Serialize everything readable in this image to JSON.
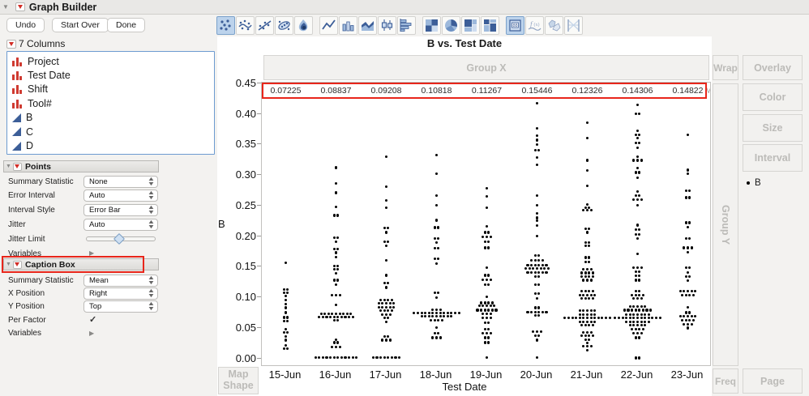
{
  "window": {
    "title": "Graph Builder",
    "buttons": [
      {
        "label": "Undo"
      },
      {
        "label": "Start Over"
      },
      {
        "label": "Done"
      }
    ]
  },
  "toolbar": {
    "groups": [
      [
        {
          "name": "points",
          "selected": true
        },
        {
          "name": "smoother",
          "selected": false
        },
        {
          "name": "line-of-fit",
          "selected": false
        },
        {
          "name": "ellipse",
          "selected": false
        },
        {
          "name": "contour",
          "selected": false
        }
      ],
      [
        {
          "name": "line",
          "selected": false
        },
        {
          "name": "bar",
          "selected": false
        },
        {
          "name": "area",
          "selected": false
        },
        {
          "name": "box-plot",
          "selected": false
        },
        {
          "name": "histogram",
          "selected": false
        }
      ],
      [
        {
          "name": "heatmap",
          "selected": false
        },
        {
          "name": "pie",
          "selected": false
        },
        {
          "name": "treemap",
          "selected": false
        },
        {
          "name": "mosaic",
          "selected": false
        }
      ],
      [
        {
          "name": "caption-box",
          "selected": true
        },
        {
          "name": "formula",
          "selected": false
        },
        {
          "name": "map-shapes",
          "selected": false
        },
        {
          "name": "parallel",
          "selected": false
        }
      ]
    ]
  },
  "columns_panel": {
    "header": "7 Columns",
    "items": [
      {
        "name": "Project",
        "type": "nominal"
      },
      {
        "name": "Test Date",
        "type": "nominal"
      },
      {
        "name": "Shift",
        "type": "nominal"
      },
      {
        "name": "Tool#",
        "type": "nominal"
      },
      {
        "name": "B",
        "type": "continuous"
      },
      {
        "name": "C",
        "type": "continuous"
      },
      {
        "name": "D",
        "type": "continuous"
      }
    ]
  },
  "points_panel": {
    "title": "Points",
    "rows": [
      {
        "label": "Summary Statistic",
        "control": "select",
        "value": "None"
      },
      {
        "label": "Error Interval",
        "control": "select",
        "value": "Auto"
      },
      {
        "label": "Interval Style",
        "control": "select",
        "value": "Error Bar"
      },
      {
        "label": "Jitter",
        "control": "select",
        "value": "Auto"
      },
      {
        "label": "Jitter Limit",
        "control": "slider"
      },
      {
        "label": "Variables",
        "control": "disclosure"
      }
    ]
  },
  "caption_panel": {
    "title": "Caption Box",
    "highlighted": true,
    "rows": [
      {
        "label": "Summary Statistic",
        "control": "select",
        "value": "Mean"
      },
      {
        "label": "X Position",
        "control": "select",
        "value": "Right"
      },
      {
        "label": "Y Position",
        "control": "select",
        "value": "Top"
      },
      {
        "label": "Per Factor",
        "control": "checkbox",
        "checked": true
      },
      {
        "label": "Variables",
        "control": "disclosure"
      }
    ]
  },
  "zones": {
    "group_x": "Group X",
    "group_y": "Group Y",
    "wrap": "Wrap",
    "overlay": "Overlay",
    "color": "Color",
    "size": "Size",
    "interval": "Interval",
    "freq": "Freq",
    "page": "Page",
    "map_shape": "Map Shape"
  },
  "legend": {
    "symbol": "dot",
    "label": "B"
  },
  "chart_data": {
    "type": "scatter",
    "title": "B vs. Test Date",
    "xlabel": "Test Date",
    "ylabel": "B",
    "ylim": [
      0,
      0.45
    ],
    "ytick_step": 0.05,
    "grid": false,
    "legend_position": "right",
    "categories": [
      "15-Jun",
      "16-Jun",
      "17-Jun",
      "18-Jun",
      "19-Jun",
      "20-Jun",
      "21-Jun",
      "22-Jun",
      "23-Jun"
    ],
    "caption_box": {
      "statistic": "Mean",
      "values": [
        "0.07225",
        "0.08837",
        "0.09208",
        "0.10818",
        "0.11267",
        "0.15446",
        "0.12326",
        "0.14306",
        "0.14822"
      ],
      "highlighted": true
    },
    "point_bins_note": "per category: [B value, count of jittered points at that level]",
    "point_bins": [
      [
        [
          0.157,
          1
        ],
        [
          0.113,
          2
        ],
        [
          0.108,
          2
        ],
        [
          0.102,
          1
        ],
        [
          0.096,
          1
        ],
        [
          0.089,
          1
        ],
        [
          0.083,
          1
        ],
        [
          0.075,
          1
        ],
        [
          0.067,
          2
        ],
        [
          0.061,
          2
        ],
        [
          0.048,
          1
        ],
        [
          0.043,
          2
        ],
        [
          0.036,
          1
        ],
        [
          0.03,
          1
        ],
        [
          0.021,
          1
        ],
        [
          0.016,
          2
        ]
      ],
      [
        [
          0.312,
          1
        ],
        [
          0.286,
          1
        ],
        [
          0.271,
          1
        ],
        [
          0.248,
          1
        ],
        [
          0.234,
          2
        ],
        [
          0.197,
          2
        ],
        [
          0.191,
          1
        ],
        [
          0.179,
          2
        ],
        [
          0.173,
          1
        ],
        [
          0.166,
          1
        ],
        [
          0.151,
          2
        ],
        [
          0.146,
          2
        ],
        [
          0.139,
          1
        ],
        [
          0.128,
          2
        ],
        [
          0.121,
          1
        ],
        [
          0.103,
          3
        ],
        [
          0.088,
          1
        ],
        [
          0.073,
          9
        ],
        [
          0.068,
          10
        ],
        [
          0.062,
          2
        ],
        [
          0.031,
          1
        ],
        [
          0.026,
          2
        ],
        [
          0.019,
          3
        ],
        [
          0.002,
          12
        ]
      ],
      [
        [
          0.33,
          1
        ],
        [
          0.281,
          1
        ],
        [
          0.258,
          1
        ],
        [
          0.247,
          1
        ],
        [
          0.213,
          2
        ],
        [
          0.206,
          1
        ],
        [
          0.191,
          2
        ],
        [
          0.184,
          1
        ],
        [
          0.16,
          1
        ],
        [
          0.136,
          1
        ],
        [
          0.123,
          2
        ],
        [
          0.116,
          1
        ],
        [
          0.096,
          4
        ],
        [
          0.09,
          5
        ],
        [
          0.084,
          5
        ],
        [
          0.078,
          4
        ],
        [
          0.072,
          3
        ],
        [
          0.066,
          2
        ],
        [
          0.06,
          1
        ],
        [
          0.036,
          2
        ],
        [
          0.03,
          3
        ],
        [
          0.002,
          8
        ]
      ],
      [
        [
          0.333,
          1
        ],
        [
          0.302,
          1
        ],
        [
          0.266,
          1
        ],
        [
          0.25,
          1
        ],
        [
          0.226,
          1
        ],
        [
          0.214,
          2
        ],
        [
          0.196,
          2
        ],
        [
          0.19,
          1
        ],
        [
          0.18,
          2
        ],
        [
          0.163,
          2
        ],
        [
          0.155,
          1
        ],
        [
          0.108,
          2
        ],
        [
          0.1,
          1
        ],
        [
          0.08,
          3
        ],
        [
          0.074,
          13
        ],
        [
          0.069,
          9
        ],
        [
          0.063,
          4
        ],
        [
          0.051,
          1
        ],
        [
          0.041,
          2
        ],
        [
          0.034,
          3
        ]
      ],
      [
        [
          0.278,
          1
        ],
        [
          0.265,
          1
        ],
        [
          0.247,
          1
        ],
        [
          0.216,
          1
        ],
        [
          0.206,
          2
        ],
        [
          0.199,
          3
        ],
        [
          0.191,
          2
        ],
        [
          0.181,
          2
        ],
        [
          0.148,
          1
        ],
        [
          0.136,
          2
        ],
        [
          0.129,
          3
        ],
        [
          0.121,
          2
        ],
        [
          0.101,
          1
        ],
        [
          0.091,
          4
        ],
        [
          0.086,
          5
        ],
        [
          0.079,
          6
        ],
        [
          0.073,
          3
        ],
        [
          0.066,
          3
        ],
        [
          0.059,
          2
        ],
        [
          0.048,
          2
        ],
        [
          0.041,
          3
        ],
        [
          0.034,
          2
        ],
        [
          0.026,
          2
        ],
        [
          0.002,
          1
        ]
      ],
      [
        [
          0.417,
          1
        ],
        [
          0.376,
          1
        ],
        [
          0.364,
          1
        ],
        [
          0.357,
          1
        ],
        [
          0.35,
          1
        ],
        [
          0.34,
          2
        ],
        [
          0.329,
          1
        ],
        [
          0.317,
          1
        ],
        [
          0.266,
          1
        ],
        [
          0.25,
          1
        ],
        [
          0.237,
          1
        ],
        [
          0.23,
          1
        ],
        [
          0.225,
          1
        ],
        [
          0.217,
          1
        ],
        [
          0.2,
          1
        ],
        [
          0.168,
          2
        ],
        [
          0.16,
          4
        ],
        [
          0.153,
          6
        ],
        [
          0.147,
          7
        ],
        [
          0.141,
          6
        ],
        [
          0.134,
          2
        ],
        [
          0.121,
          2
        ],
        [
          0.106,
          2
        ],
        [
          0.098,
          1
        ],
        [
          0.083,
          2
        ],
        [
          0.076,
          6
        ],
        [
          0.07,
          2
        ],
        [
          0.044,
          3
        ],
        [
          0.037,
          2
        ],
        [
          0.03,
          1
        ],
        [
          0.002,
          1
        ]
      ],
      [
        [
          0.385,
          1
        ],
        [
          0.36,
          1
        ],
        [
          0.324,
          1
        ],
        [
          0.307,
          1
        ],
        [
          0.282,
          1
        ],
        [
          0.252,
          1
        ],
        [
          0.247,
          2
        ],
        [
          0.242,
          3
        ],
        [
          0.212,
          2
        ],
        [
          0.206,
          1
        ],
        [
          0.19,
          2
        ],
        [
          0.184,
          2
        ],
        [
          0.165,
          2
        ],
        [
          0.158,
          2
        ],
        [
          0.146,
          3
        ],
        [
          0.14,
          4
        ],
        [
          0.134,
          4
        ],
        [
          0.128,
          3
        ],
        [
          0.11,
          4
        ],
        [
          0.104,
          5
        ],
        [
          0.098,
          4
        ],
        [
          0.078,
          5
        ],
        [
          0.072,
          5
        ],
        [
          0.066,
          13
        ],
        [
          0.06,
          5
        ],
        [
          0.054,
          4
        ],
        [
          0.043,
          3
        ],
        [
          0.037,
          4
        ],
        [
          0.031,
          2
        ],
        [
          0.025,
          1
        ],
        [
          0.02,
          3
        ],
        [
          0.014,
          1
        ]
      ],
      [
        [
          0.415,
          1
        ],
        [
          0.4,
          2
        ],
        [
          0.372,
          1
        ],
        [
          0.366,
          2
        ],
        [
          0.36,
          1
        ],
        [
          0.352,
          2
        ],
        [
          0.344,
          1
        ],
        [
          0.33,
          1
        ],
        [
          0.324,
          3
        ],
        [
          0.311,
          1
        ],
        [
          0.304,
          2
        ],
        [
          0.296,
          1
        ],
        [
          0.273,
          1
        ],
        [
          0.266,
          2
        ],
        [
          0.26,
          3
        ],
        [
          0.25,
          1
        ],
        [
          0.218,
          1
        ],
        [
          0.211,
          2
        ],
        [
          0.203,
          2
        ],
        [
          0.196,
          1
        ],
        [
          0.171,
          1
        ],
        [
          0.149,
          3
        ],
        [
          0.142,
          2
        ],
        [
          0.135,
          2
        ],
        [
          0.128,
          2
        ],
        [
          0.11,
          2
        ],
        [
          0.104,
          4
        ],
        [
          0.098,
          3
        ],
        [
          0.085,
          5
        ],
        [
          0.079,
          8
        ],
        [
          0.072,
          7
        ],
        [
          0.066,
          13
        ],
        [
          0.06,
          7
        ],
        [
          0.054,
          5
        ],
        [
          0.048,
          4
        ],
        [
          0.041,
          3
        ],
        [
          0.034,
          2
        ],
        [
          0.001,
          2
        ]
      ],
      [
        [
          0.366,
          1
        ],
        [
          0.308,
          1
        ],
        [
          0.302,
          1
        ],
        [
          0.274,
          2
        ],
        [
          0.263,
          2
        ],
        [
          0.222,
          2
        ],
        [
          0.215,
          1
        ],
        [
          0.196,
          2
        ],
        [
          0.181,
          3
        ],
        [
          0.174,
          1
        ],
        [
          0.148,
          2
        ],
        [
          0.141,
          1
        ],
        [
          0.134,
          2
        ],
        [
          0.127,
          1
        ],
        [
          0.11,
          5
        ],
        [
          0.104,
          4
        ],
        [
          0.084,
          1
        ],
        [
          0.075,
          2
        ],
        [
          0.069,
          5
        ],
        [
          0.063,
          4
        ],
        [
          0.056,
          3
        ],
        [
          0.05,
          1
        ]
      ]
    ]
  },
  "colors": {
    "annotation_red": "#e8261b",
    "icon_red": "#d22d26",
    "icon_blue": "#3c5e98",
    "selected_icon_bg": "#bcd3ec",
    "point_black": "#000000"
  }
}
